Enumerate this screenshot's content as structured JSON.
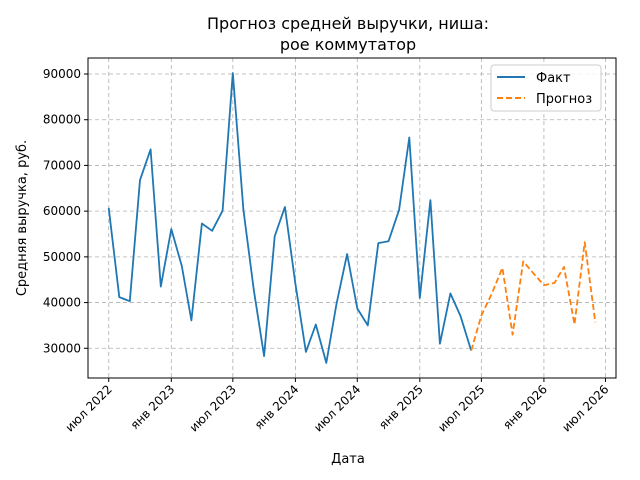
{
  "chart_data": {
    "type": "line",
    "title_lines": [
      "Прогноз средней выручки, ниша:",
      "рое коммутатор"
    ],
    "xlabel": "Дата",
    "ylabel": "Средняя выручка, руб.",
    "x_ticks": [
      {
        "date": "2022-07-01",
        "label": "июл 2022"
      },
      {
        "date": "2023-01-01",
        "label": "янв 2023"
      },
      {
        "date": "2023-07-01",
        "label": "июл 2023"
      },
      {
        "date": "2024-01-01",
        "label": "янв 2024"
      },
      {
        "date": "2024-07-01",
        "label": "июл 2024"
      },
      {
        "date": "2025-01-01",
        "label": "янв 2025"
      },
      {
        "date": "2025-07-01",
        "label": "июл 2025"
      },
      {
        "date": "2026-01-01",
        "label": "янв 2026"
      },
      {
        "date": "2026-07-01",
        "label": "июл 2026"
      }
    ],
    "y_ticks": [
      30000,
      40000,
      50000,
      60000,
      70000,
      80000,
      90000
    ],
    "y_tick_labels": [
      "30000",
      "40000",
      "50000",
      "60000",
      "70000",
      "80000",
      "90000"
    ],
    "xlim": [
      "2022-05-01",
      "2026-08-01"
    ],
    "ylim": [
      23500,
      93500
    ],
    "grid": true,
    "legend_position": "top-right",
    "series": [
      {
        "name": "Факт",
        "color": "#1f77b4",
        "style": "solid",
        "points": [
          [
            "2022-07-01",
            60700
          ],
          [
            "2022-08-01",
            41200
          ],
          [
            "2022-09-01",
            40300
          ],
          [
            "2022-10-01",
            66800
          ],
          [
            "2022-11-01",
            73500
          ],
          [
            "2022-12-01",
            43500
          ],
          [
            "2023-01-01",
            56100
          ],
          [
            "2023-02-01",
            48000
          ],
          [
            "2023-03-01",
            36100
          ],
          [
            "2023-04-01",
            57300
          ],
          [
            "2023-05-01",
            55700
          ],
          [
            "2023-06-01",
            60100
          ],
          [
            "2023-07-01",
            90200
          ],
          [
            "2023-08-01",
            60300
          ],
          [
            "2023-09-01",
            42600
          ],
          [
            "2023-10-01",
            28300
          ],
          [
            "2023-11-01",
            54500
          ],
          [
            "2023-12-01",
            60900
          ],
          [
            "2024-01-01",
            44100
          ],
          [
            "2024-02-01",
            29200
          ],
          [
            "2024-03-01",
            35200
          ],
          [
            "2024-04-01",
            26800
          ],
          [
            "2024-05-01",
            39700
          ],
          [
            "2024-06-01",
            50600
          ],
          [
            "2024-07-01",
            38700
          ],
          [
            "2024-08-01",
            35000
          ],
          [
            "2024-09-01",
            53000
          ],
          [
            "2024-10-01",
            53400
          ],
          [
            "2024-11-01",
            60300
          ],
          [
            "2024-12-01",
            76100
          ],
          [
            "2025-01-01",
            41000
          ],
          [
            "2025-02-01",
            62400
          ],
          [
            "2025-03-01",
            31000
          ],
          [
            "2025-04-01",
            42000
          ],
          [
            "2025-05-01",
            37000
          ],
          [
            "2025-06-01",
            29500
          ]
        ]
      },
      {
        "name": "Прогноз",
        "color": "#ff7f0e",
        "style": "dashed",
        "points": [
          [
            "2025-06-01",
            29500
          ],
          [
            "2025-07-01",
            37200
          ],
          [
            "2025-08-01",
            42000
          ],
          [
            "2025-09-01",
            47600
          ],
          [
            "2025-10-01",
            33000
          ],
          [
            "2025-11-01",
            49000
          ],
          [
            "2025-12-01",
            46400
          ],
          [
            "2026-01-01",
            43800
          ],
          [
            "2026-02-01",
            44300
          ],
          [
            "2026-03-01",
            47800
          ],
          [
            "2026-04-01",
            35200
          ],
          [
            "2026-05-01",
            53200
          ],
          [
            "2026-06-01",
            35700
          ]
        ]
      }
    ]
  }
}
